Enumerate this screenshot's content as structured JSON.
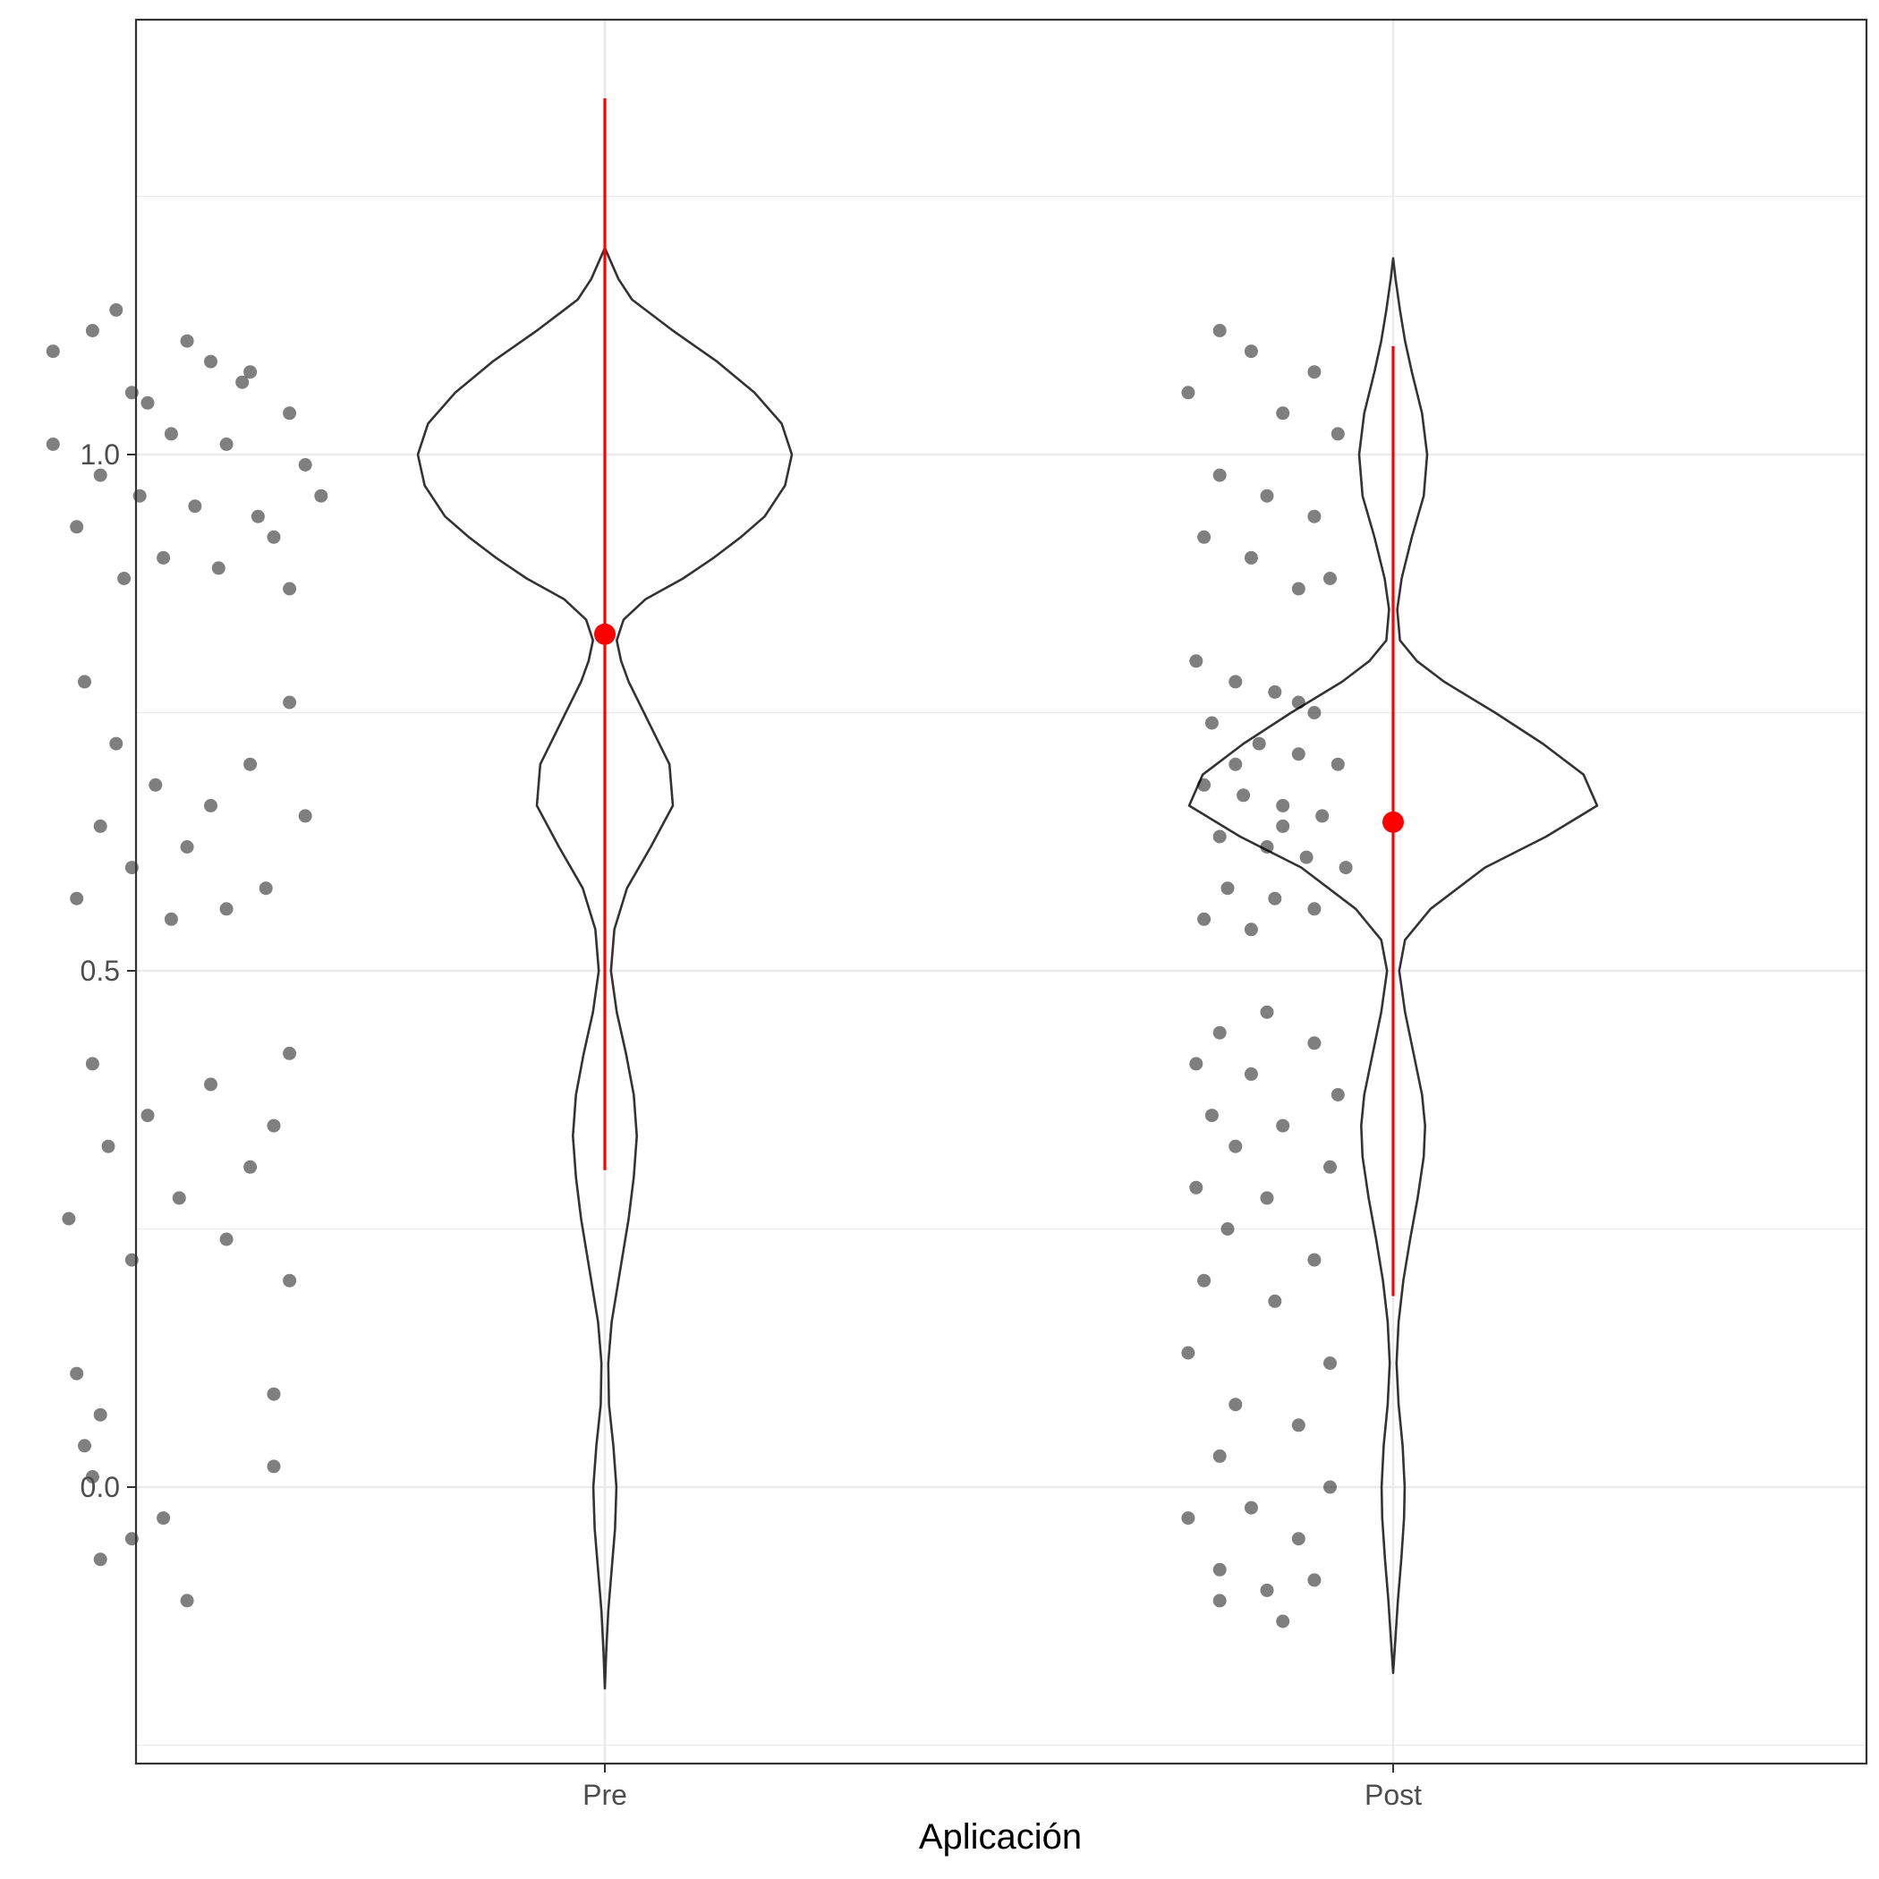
{
  "chart_data": {
    "type": "violin",
    "title": "",
    "xlabel": "Aplicación",
    "ylabel": "",
    "categories": [
      "Pre",
      "Post"
    ],
    "ylim": [
      -0.25,
      1.42
    ],
    "y_ticks": [
      0.0,
      0.5,
      1.0
    ],
    "y_tick_labels": [
      "0.0",
      "0.5",
      "1.0"
    ],
    "grid": true,
    "legend": "none",
    "colors": {
      "points": "#000000",
      "summary": "#ff0000",
      "violin_outline": "#333333",
      "grid": "#ebebeb"
    },
    "groups": [
      {
        "name": "Pre",
        "mean": 0.826,
        "range_low": 0.307,
        "range_high": 1.345,
        "density_profile": [
          [
            -0.195,
            0.0
          ],
          [
            -0.16,
            0.004
          ],
          [
            -0.12,
            0.01
          ],
          [
            -0.08,
            0.02
          ],
          [
            -0.04,
            0.03
          ],
          [
            0.0,
            0.034
          ],
          [
            0.04,
            0.025
          ],
          [
            0.08,
            0.012
          ],
          [
            0.12,
            0.01
          ],
          [
            0.16,
            0.02
          ],
          [
            0.2,
            0.04
          ],
          [
            0.26,
            0.07
          ],
          [
            0.3,
            0.085
          ],
          [
            0.34,
            0.094
          ],
          [
            0.38,
            0.085
          ],
          [
            0.42,
            0.062
          ],
          [
            0.46,
            0.035
          ],
          [
            0.5,
            0.018
          ],
          [
            0.54,
            0.028
          ],
          [
            0.58,
            0.065
          ],
          [
            0.62,
            0.135
          ],
          [
            0.66,
            0.2
          ],
          [
            0.7,
            0.19
          ],
          [
            0.74,
            0.13
          ],
          [
            0.78,
            0.07
          ],
          [
            0.8,
            0.048
          ],
          [
            0.82,
            0.035
          ],
          [
            0.84,
            0.055
          ],
          [
            0.86,
            0.12
          ],
          [
            0.88,
            0.23
          ],
          [
            0.9,
            0.32
          ],
          [
            0.92,
            0.4
          ],
          [
            0.94,
            0.47
          ],
          [
            0.97,
            0.53
          ],
          [
            1.0,
            0.55
          ],
          [
            1.03,
            0.52
          ],
          [
            1.06,
            0.44
          ],
          [
            1.09,
            0.33
          ],
          [
            1.12,
            0.2
          ],
          [
            1.15,
            0.08
          ],
          [
            1.17,
            0.04
          ],
          [
            1.2,
            0.0
          ]
        ],
        "points": [
          [
            0.38,
            1.14
          ],
          [
            0.35,
            1.12
          ],
          [
            0.5,
            1.09
          ],
          [
            0.55,
            1.08
          ],
          [
            0.4,
            1.06
          ],
          [
            0.3,
            1.1
          ],
          [
            0.6,
            1.04
          ],
          [
            0.45,
            1.02
          ],
          [
            0.52,
            1.01
          ],
          [
            0.36,
            0.98
          ],
          [
            0.62,
            0.99
          ],
          [
            0.41,
            0.96
          ],
          [
            0.48,
            0.95
          ],
          [
            0.56,
            0.94
          ],
          [
            0.33,
            0.93
          ],
          [
            0.58,
            0.92
          ],
          [
            0.44,
            0.9
          ],
          [
            0.51,
            0.89
          ],
          [
            0.39,
            0.88
          ],
          [
            0.6,
            0.87
          ],
          [
            0.3,
            1.01
          ],
          [
            0.64,
            0.96
          ],
          [
            0.42,
            1.05
          ],
          [
            0.54,
            1.07
          ],
          [
            0.47,
            1.11
          ],
          [
            0.34,
            0.78
          ],
          [
            0.6,
            0.76
          ],
          [
            0.38,
            0.72
          ],
          [
            0.55,
            0.7
          ],
          [
            0.43,
            0.68
          ],
          [
            0.5,
            0.66
          ],
          [
            0.36,
            0.64
          ],
          [
            0.62,
            0.65
          ],
          [
            0.47,
            0.62
          ],
          [
            0.4,
            0.6
          ],
          [
            0.57,
            0.58
          ],
          [
            0.33,
            0.57
          ],
          [
            0.52,
            0.56
          ],
          [
            0.45,
            0.55
          ],
          [
            0.6,
            0.42
          ],
          [
            0.35,
            0.41
          ],
          [
            0.5,
            0.39
          ],
          [
            0.42,
            0.36
          ],
          [
            0.58,
            0.35
          ],
          [
            0.37,
            0.33
          ],
          [
            0.55,
            0.31
          ],
          [
            0.46,
            0.28
          ],
          [
            0.32,
            0.26
          ],
          [
            0.52,
            0.24
          ],
          [
            0.4,
            0.22
          ],
          [
            0.6,
            0.2
          ],
          [
            0.33,
            0.11
          ],
          [
            0.58,
            0.09
          ],
          [
            0.36,
            0.07
          ],
          [
            0.34,
            0.04
          ],
          [
            0.58,
            0.02
          ],
          [
            0.35,
            0.01
          ],
          [
            0.44,
            -0.03
          ],
          [
            0.4,
            -0.05
          ],
          [
            0.36,
            -0.07
          ],
          [
            0.47,
            -0.11
          ]
        ]
      },
      {
        "name": "Post",
        "mean": 0.644,
        "range_low": 0.185,
        "range_high": 1.105,
        "density_profile": [
          [
            -0.18,
            0.0
          ],
          [
            -0.15,
            0.006
          ],
          [
            -0.11,
            0.014
          ],
          [
            -0.07,
            0.024
          ],
          [
            -0.03,
            0.032
          ],
          [
            0.0,
            0.034
          ],
          [
            0.04,
            0.028
          ],
          [
            0.08,
            0.016
          ],
          [
            0.12,
            0.01
          ],
          [
            0.16,
            0.016
          ],
          [
            0.2,
            0.03
          ],
          [
            0.24,
            0.05
          ],
          [
            0.28,
            0.072
          ],
          [
            0.32,
            0.09
          ],
          [
            0.35,
            0.094
          ],
          [
            0.38,
            0.085
          ],
          [
            0.42,
            0.06
          ],
          [
            0.46,
            0.035
          ],
          [
            0.5,
            0.018
          ],
          [
            0.53,
            0.035
          ],
          [
            0.56,
            0.11
          ],
          [
            0.6,
            0.27
          ],
          [
            0.63,
            0.45
          ],
          [
            0.66,
            0.6
          ],
          [
            0.69,
            0.56
          ],
          [
            0.72,
            0.44
          ],
          [
            0.75,
            0.3
          ],
          [
            0.78,
            0.15
          ],
          [
            0.8,
            0.07
          ],
          [
            0.82,
            0.02
          ],
          [
            0.85,
            0.012
          ],
          [
            0.88,
            0.025
          ],
          [
            0.92,
            0.055
          ],
          [
            0.96,
            0.09
          ],
          [
            1.0,
            0.1
          ],
          [
            1.04,
            0.085
          ],
          [
            1.08,
            0.055
          ],
          [
            1.11,
            0.035
          ],
          [
            1.14,
            0.02
          ],
          [
            1.17,
            0.007
          ],
          [
            1.19,
            0.0
          ]
        ],
        "points": [
          [
            1.78,
            1.12
          ],
          [
            1.82,
            1.1
          ],
          [
            1.9,
            1.08
          ],
          [
            1.74,
            1.06
          ],
          [
            1.86,
            1.04
          ],
          [
            1.93,
            1.02
          ],
          [
            1.78,
            0.98
          ],
          [
            1.84,
            0.96
          ],
          [
            1.9,
            0.94
          ],
          [
            1.76,
            0.92
          ],
          [
            1.82,
            0.9
          ],
          [
            1.92,
            0.88
          ],
          [
            1.88,
            0.87
          ],
          [
            1.75,
            0.8
          ],
          [
            1.8,
            0.78
          ],
          [
            1.85,
            0.77
          ],
          [
            1.9,
            0.75
          ],
          [
            1.77,
            0.74
          ],
          [
            1.83,
            0.72
          ],
          [
            1.88,
            0.71
          ],
          [
            1.93,
            0.7
          ],
          [
            1.76,
            0.68
          ],
          [
            1.81,
            0.67
          ],
          [
            1.86,
            0.66
          ],
          [
            1.91,
            0.65
          ],
          [
            1.78,
            0.63
          ],
          [
            1.84,
            0.62
          ],
          [
            1.89,
            0.61
          ],
          [
            1.94,
            0.6
          ],
          [
            1.79,
            0.58
          ],
          [
            1.85,
            0.57
          ],
          [
            1.9,
            0.56
          ],
          [
            1.76,
            0.55
          ],
          [
            1.82,
            0.54
          ],
          [
            1.88,
            0.76
          ],
          [
            1.8,
            0.7
          ],
          [
            1.86,
            0.64
          ],
          [
            1.84,
            0.46
          ],
          [
            1.78,
            0.44
          ],
          [
            1.9,
            0.43
          ],
          [
            1.75,
            0.41
          ],
          [
            1.82,
            0.4
          ],
          [
            1.93,
            0.38
          ],
          [
            1.77,
            0.36
          ],
          [
            1.86,
            0.35
          ],
          [
            1.8,
            0.33
          ],
          [
            1.92,
            0.31
          ],
          [
            1.75,
            0.29
          ],
          [
            1.84,
            0.28
          ],
          [
            1.79,
            0.25
          ],
          [
            1.9,
            0.22
          ],
          [
            1.76,
            0.2
          ],
          [
            1.85,
            0.18
          ],
          [
            1.74,
            0.13
          ],
          [
            1.92,
            0.12
          ],
          [
            1.8,
            0.08
          ],
          [
            1.88,
            0.06
          ],
          [
            1.78,
            0.03
          ],
          [
            1.92,
            0.0
          ],
          [
            1.82,
            -0.02
          ],
          [
            1.74,
            -0.03
          ],
          [
            1.88,
            -0.05
          ],
          [
            1.78,
            -0.08
          ],
          [
            1.9,
            -0.09
          ],
          [
            1.84,
            -0.1
          ],
          [
            1.78,
            -0.11
          ],
          [
            1.86,
            -0.13
          ]
        ]
      }
    ]
  }
}
